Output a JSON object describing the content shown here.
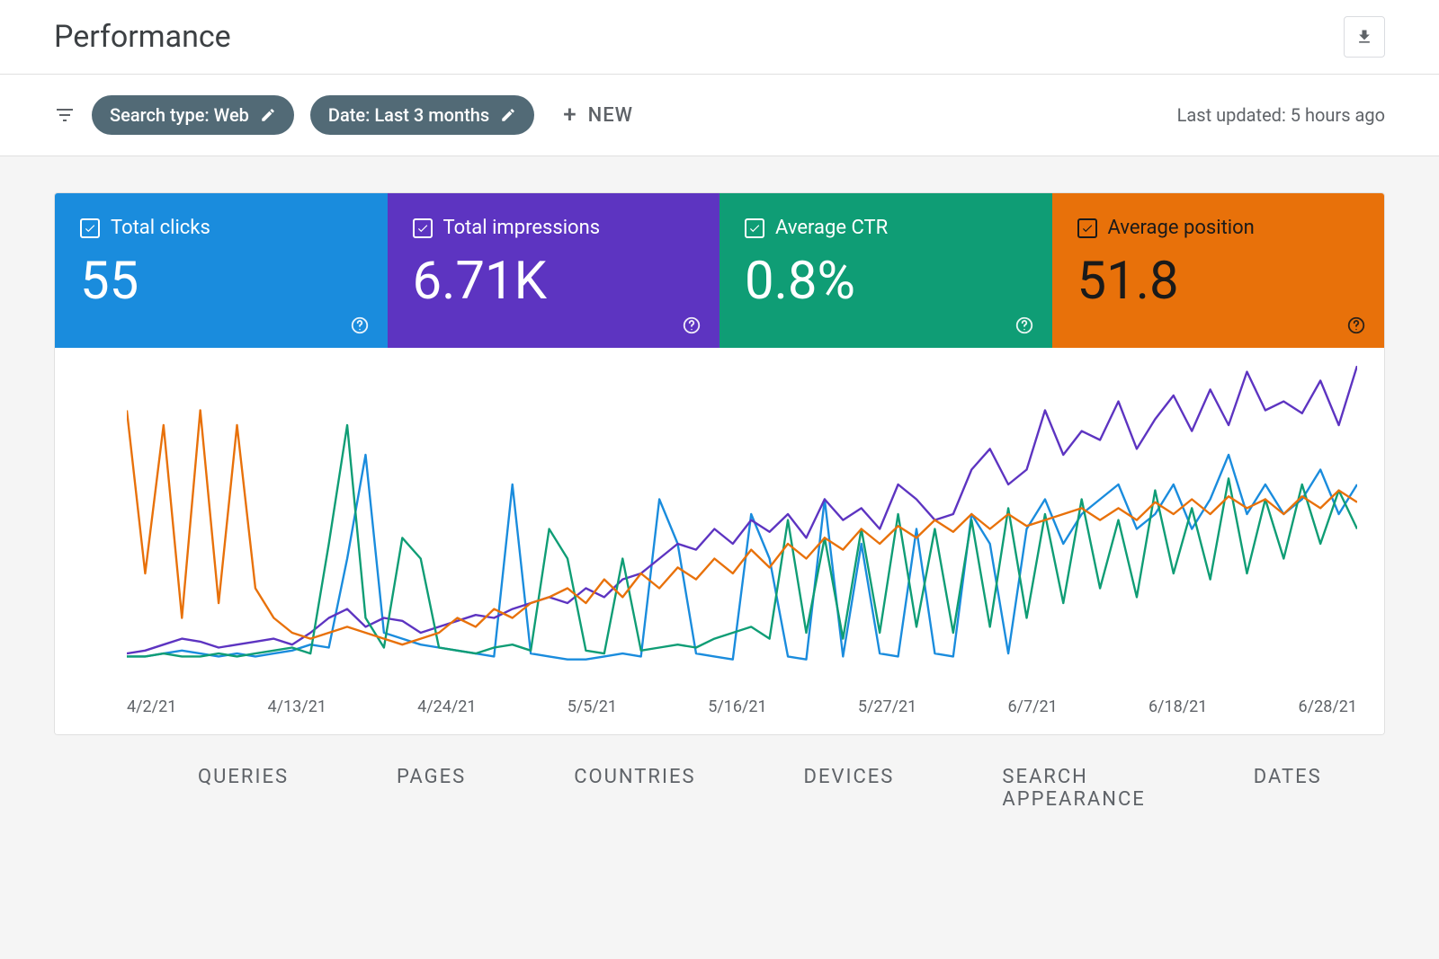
{
  "header": {
    "title": "Performance",
    "export_label": "Export"
  },
  "filters": {
    "search_type_chip": "Search type: Web",
    "date_chip": "Date: Last 3 months",
    "new_label": "NEW",
    "last_updated": "Last updated: 5 hours ago"
  },
  "metrics": [
    {
      "id": "total-clicks",
      "label": "Total clicks",
      "value": "55",
      "color": "#1a8cdd",
      "text_color": "#ffffff",
      "checked": true
    },
    {
      "id": "total-impressions",
      "label": "Total impressions",
      "value": "6.71K",
      "color": "#5d34c1",
      "text_color": "#ffffff",
      "checked": true
    },
    {
      "id": "average-ctr",
      "label": "Average CTR",
      "value": "0.8%",
      "color": "#0f9d75",
      "text_color": "#ffffff",
      "checked": true
    },
    {
      "id": "average-position",
      "label": "Average position",
      "value": "51.8",
      "color": "#e8710a",
      "text_color": "#1a1a1a",
      "checked": true
    }
  ],
  "chart": {
    "type": "line",
    "background_color": "#ffffff",
    "x_labels": [
      "4/2/21",
      "4/13/21",
      "4/24/21",
      "5/5/21",
      "5/16/21",
      "5/27/21",
      "6/7/21",
      "6/18/21",
      "6/28/21"
    ],
    "x_label_color": "#5f6368",
    "x_label_fontsize": 18,
    "line_width": 2.4,
    "ylim": [
      0,
      100
    ],
    "series": [
      {
        "name": "clicks",
        "color": "#1a8cdd",
        "values": [
          2,
          2,
          3,
          4,
          3,
          2,
          3,
          2,
          3,
          4,
          6,
          5,
          35,
          70,
          10,
          8,
          6,
          5,
          4,
          3,
          2,
          60,
          3,
          2,
          1,
          1,
          2,
          3,
          2,
          55,
          40,
          3,
          2,
          1,
          50,
          35,
          2,
          1,
          55,
          2,
          40,
          3,
          2,
          45,
          3,
          2,
          50,
          40,
          3,
          45,
          55,
          40,
          50,
          55,
          60,
          45,
          50,
          60,
          45,
          55,
          70,
          50,
          60,
          50,
          55,
          65,
          50,
          60
        ]
      },
      {
        "name": "impressions",
        "color": "#5d34c1",
        "values": [
          3,
          4,
          6,
          8,
          7,
          5,
          6,
          7,
          8,
          6,
          10,
          15,
          18,
          12,
          15,
          14,
          10,
          12,
          14,
          16,
          15,
          18,
          20,
          22,
          20,
          25,
          22,
          28,
          30,
          35,
          40,
          38,
          45,
          40,
          48,
          44,
          50,
          42,
          55,
          48,
          52,
          45,
          60,
          55,
          48,
          50,
          65,
          72,
          60,
          65,
          85,
          70,
          78,
          75,
          88,
          72,
          82,
          90,
          78,
          92,
          80,
          98,
          85,
          88,
          84,
          95,
          80,
          100
        ]
      },
      {
        "name": "ctr",
        "color": "#0f9d75",
        "values": [
          2,
          2,
          3,
          2,
          2,
          3,
          2,
          3,
          4,
          5,
          3,
          40,
          80,
          15,
          5,
          42,
          35,
          5,
          4,
          3,
          5,
          6,
          4,
          45,
          35,
          4,
          3,
          35,
          4,
          5,
          6,
          5,
          8,
          10,
          12,
          8,
          48,
          10,
          42,
          8,
          45,
          10,
          50,
          12,
          45,
          10,
          48,
          12,
          52,
          15,
          50,
          20,
          55,
          25,
          48,
          22,
          58,
          30,
          52,
          28,
          62,
          30,
          55,
          35,
          60,
          40,
          58,
          45
        ]
      },
      {
        "name": "position",
        "color": "#e8710a",
        "values": [
          85,
          30,
          80,
          15,
          85,
          20,
          80,
          25,
          15,
          10,
          8,
          10,
          12,
          10,
          8,
          6,
          8,
          10,
          15,
          12,
          18,
          15,
          20,
          22,
          25,
          20,
          28,
          22,
          30,
          25,
          32,
          28,
          35,
          30,
          38,
          32,
          40,
          35,
          42,
          38,
          45,
          40,
          46,
          42,
          48,
          44,
          50,
          45,
          50,
          46,
          48,
          50,
          52,
          48,
          52,
          48,
          54,
          50,
          55,
          50,
          56,
          52,
          55,
          50,
          56,
          52,
          58,
          54
        ]
      }
    ]
  },
  "tabs": [
    "QUERIES",
    "PAGES",
    "COUNTRIES",
    "DEVICES",
    "SEARCH APPEARANCE",
    "DATES"
  ]
}
